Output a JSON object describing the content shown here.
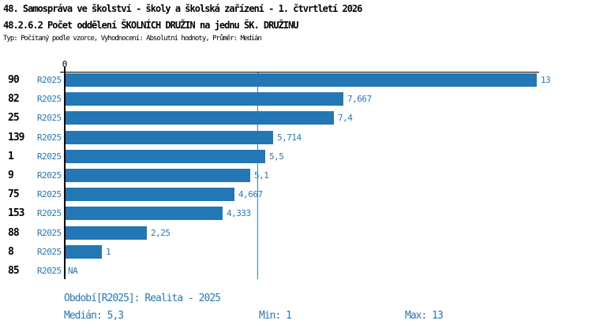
{
  "header": {
    "title_line1": "48. Samospráva ve školství - školy a školská zařízení - 1. čtvrtletí 2026",
    "title_line2": "48.2.6.2 Počet oddělení ŠKOLNÍCH DRUŽIN na jednu ŠK. DRUŽINU",
    "subtitle": "Typ: Počítaný podle vzorce, Vyhodnocení: Absolutní hodnoty, Průměr: Medián"
  },
  "chart_data": {
    "type": "bar",
    "orientation": "horizontal",
    "axis_zero_label": "0",
    "xlim": [
      0,
      13
    ],
    "median_value": 5.3,
    "grid": false,
    "legend": "none",
    "bar_color": "#2277b4",
    "accent_text_color": "#2878b8",
    "median_line_color": "#2e86c1",
    "axis_color": "#000000",
    "rows": [
      {
        "id": "90",
        "period": "R2025",
        "value": 13,
        "value_label": "13"
      },
      {
        "id": "82",
        "period": "R2025",
        "value": 7.667,
        "value_label": "7,667"
      },
      {
        "id": "25",
        "period": "R2025",
        "value": 7.4,
        "value_label": "7,4"
      },
      {
        "id": "139",
        "period": "R2025",
        "value": 5.714,
        "value_label": "5,714"
      },
      {
        "id": "1",
        "period": "R2025",
        "value": 5.5,
        "value_label": "5,5"
      },
      {
        "id": "9",
        "period": "R2025",
        "value": 5.1,
        "value_label": "5,1"
      },
      {
        "id": "75",
        "period": "R2025",
        "value": 4.667,
        "value_label": "4,667"
      },
      {
        "id": "153",
        "period": "R2025",
        "value": 4.333,
        "value_label": "4,333"
      },
      {
        "id": "88",
        "period": "R2025",
        "value": 2.25,
        "value_label": "2,25"
      },
      {
        "id": "8",
        "period": "R2025",
        "value": 1,
        "value_label": "1"
      },
      {
        "id": "85",
        "period": "R2025",
        "value": null,
        "value_label": "NA"
      }
    ]
  },
  "footer": {
    "period_label": "Období[R2025]: Realita - 2025",
    "median_label": "Medián: 5,3",
    "min_label": "Min: 1",
    "max_label": "Max: 13"
  }
}
